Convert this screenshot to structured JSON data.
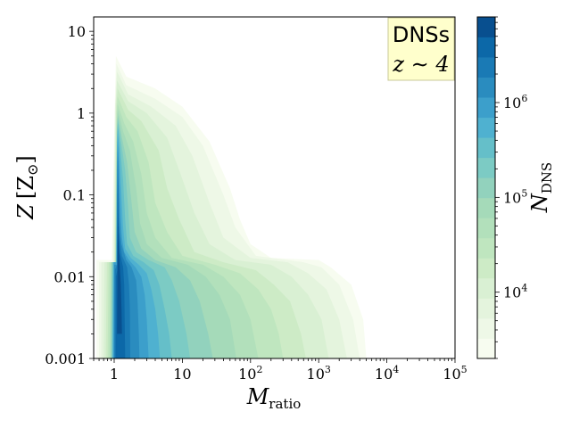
{
  "chart_data": {
    "type": "heatmap",
    "subtype": "filled-contour",
    "xscale": "log",
    "yscale": "log",
    "xlim": [
      0.5,
      100000
    ],
    "ylim": [
      0.001,
      15
    ],
    "xlabel": {
      "main": "M",
      "sub": "ratio"
    },
    "ylabel": {
      "main": "Z",
      "unit": "[Z",
      "unit_sub": "⊙",
      "unit_close": "]"
    },
    "x_ticks": [
      {
        "value": 1,
        "label": "1"
      },
      {
        "value": 10,
        "label": "10"
      },
      {
        "value": 100,
        "base": "10",
        "exp": "2"
      },
      {
        "value": 1000,
        "base": "10",
        "exp": "3"
      },
      {
        "value": 10000,
        "base": "10",
        "exp": "4"
      },
      {
        "value": 100000,
        "base": "10",
        "exp": "5"
      }
    ],
    "y_ticks": [
      {
        "value": 0.001,
        "label": "0.001"
      },
      {
        "value": 0.01,
        "label": "0.01"
      },
      {
        "value": 0.1,
        "label": "0.1"
      },
      {
        "value": 1,
        "label": "1"
      },
      {
        "value": 10,
        "label": "10"
      }
    ],
    "annotation": {
      "line1": "DNSs",
      "line2": "z ∼ 4",
      "position": "top-right",
      "background": "#ffffcc"
    },
    "colorbar": {
      "label": {
        "main": "N",
        "sub": "DNS"
      },
      "scale": "log",
      "range": [
        2000,
        8000000
      ],
      "ticks": [
        {
          "value": 10000,
          "base": "10",
          "exp": "4"
        },
        {
          "value": 100000,
          "base": "10",
          "exp": "5"
        },
        {
          "value": 1000000,
          "base": "10",
          "exp": "6"
        }
      ],
      "colors": [
        "#f7fcf0",
        "#eef8e7",
        "#e4f4dd",
        "#d9f0d3",
        "#cdebc6",
        "#bfe6bf",
        "#b2e0bb",
        "#a5dab9",
        "#92d2bd",
        "#7ccbc4",
        "#65bfc9",
        "#4fb1d0",
        "#3c9fcb",
        "#2a8cbf",
        "#1a7ab5",
        "#0c68a8",
        "#084f8f"
      ]
    },
    "contours": [
      {
        "level": 0,
        "poly": [
          [
            0.55,
            0.001
          ],
          [
            0.55,
            0.016
          ],
          [
            0.92,
            0.016
          ],
          [
            1.0,
            0.6
          ],
          [
            1.06,
            5.0
          ],
          [
            1.5,
            2.8
          ],
          [
            4,
            2.0
          ],
          [
            10,
            1.2
          ],
          [
            25,
            0.45
          ],
          [
            50,
            0.12
          ],
          [
            70,
            0.05
          ],
          [
            100,
            0.025
          ],
          [
            200,
            0.017
          ],
          [
            1000,
            0.016
          ],
          [
            1500,
            0.013
          ],
          [
            3000,
            0.008
          ],
          [
            4500,
            0.003
          ],
          [
            5000,
            0.001
          ]
        ]
      },
      {
        "level": 1,
        "poly": [
          [
            0.6,
            0.001
          ],
          [
            0.6,
            0.015
          ],
          [
            0.95,
            0.015
          ],
          [
            1.02,
            1.0
          ],
          [
            1.08,
            4.0
          ],
          [
            1.5,
            2.2
          ],
          [
            4,
            1.5
          ],
          [
            10,
            0.9
          ],
          [
            20,
            0.4
          ],
          [
            40,
            0.1
          ],
          [
            60,
            0.04
          ],
          [
            120,
            0.018
          ],
          [
            600,
            0.015
          ],
          [
            1100,
            0.013
          ],
          [
            2000,
            0.008
          ],
          [
            3200,
            0.003
          ],
          [
            4000,
            0.001
          ]
        ]
      },
      {
        "level": 2,
        "poly": [
          [
            0.65,
            0.001
          ],
          [
            0.65,
            0.015
          ],
          [
            0.98,
            0.015
          ],
          [
            1.04,
            1.2
          ],
          [
            1.1,
            3.2
          ],
          [
            1.6,
            1.7
          ],
          [
            3.5,
            1.2
          ],
          [
            8,
            0.7
          ],
          [
            14,
            0.3
          ],
          [
            25,
            0.08
          ],
          [
            40,
            0.03
          ],
          [
            100,
            0.017
          ],
          [
            350,
            0.015
          ],
          [
            700,
            0.011
          ],
          [
            1300,
            0.007
          ],
          [
            2000,
            0.003
          ],
          [
            2600,
            0.001
          ]
        ]
      },
      {
        "level": 3,
        "poly": [
          [
            0.7,
            0.001
          ],
          [
            0.72,
            0.015
          ],
          [
            1.0,
            0.015
          ],
          [
            1.05,
            1.3
          ],
          [
            1.1,
            2.5
          ],
          [
            1.6,
            1.4
          ],
          [
            3,
            1.0
          ],
          [
            6,
            0.5
          ],
          [
            9,
            0.2
          ],
          [
            15,
            0.06
          ],
          [
            25,
            0.025
          ],
          [
            60,
            0.016
          ],
          [
            200,
            0.014
          ],
          [
            400,
            0.01
          ],
          [
            700,
            0.006
          ],
          [
            1100,
            0.003
          ],
          [
            1400,
            0.001
          ]
        ]
      },
      {
        "level": 4,
        "poly": [
          [
            0.75,
            0.001
          ],
          [
            0.78,
            0.015
          ],
          [
            1.02,
            0.015
          ],
          [
            1.07,
            1.2
          ],
          [
            1.12,
            2.0
          ],
          [
            1.6,
            1.1
          ],
          [
            2.5,
            0.8
          ],
          [
            4.5,
            0.35
          ],
          [
            6,
            0.12
          ],
          [
            9,
            0.05
          ],
          [
            15,
            0.02
          ],
          [
            40,
            0.015
          ],
          [
            120,
            0.012
          ],
          [
            220,
            0.008
          ],
          [
            380,
            0.005
          ],
          [
            550,
            0.002
          ],
          [
            650,
            0.001
          ]
        ]
      },
      {
        "level": 5,
        "poly": [
          [
            0.8,
            0.001
          ],
          [
            0.83,
            0.015
          ],
          [
            1.03,
            0.015
          ],
          [
            1.08,
            1.0
          ],
          [
            1.12,
            1.6
          ],
          [
            1.5,
            0.9
          ],
          [
            2.2,
            0.6
          ],
          [
            3.2,
            0.25
          ],
          [
            4,
            0.08
          ],
          [
            6,
            0.035
          ],
          [
            10,
            0.018
          ],
          [
            30,
            0.014
          ],
          [
            70,
            0.011
          ],
          [
            130,
            0.007
          ],
          [
            200,
            0.004
          ],
          [
            260,
            0.002
          ],
          [
            300,
            0.001
          ]
        ]
      },
      {
        "level": 6,
        "poly": [
          [
            0.85,
            0.001
          ],
          [
            0.88,
            0.015
          ],
          [
            1.04,
            0.015
          ],
          [
            1.09,
            0.9
          ],
          [
            1.12,
            1.3
          ],
          [
            1.4,
            0.75
          ],
          [
            1.9,
            0.45
          ],
          [
            2.5,
            0.18
          ],
          [
            3,
            0.06
          ],
          [
            4,
            0.03
          ],
          [
            7,
            0.017
          ],
          [
            20,
            0.014
          ],
          [
            40,
            0.01
          ],
          [
            70,
            0.006
          ],
          [
            100,
            0.003
          ],
          [
            130,
            0.001
          ]
        ]
      },
      {
        "level": 7,
        "poly": [
          [
            0.88,
            0.001
          ],
          [
            0.9,
            0.015
          ],
          [
            1.05,
            0.015
          ],
          [
            1.1,
            0.8
          ],
          [
            1.13,
            1.1
          ],
          [
            1.35,
            0.6
          ],
          [
            1.7,
            0.35
          ],
          [
            2.1,
            0.12
          ],
          [
            2.4,
            0.045
          ],
          [
            3,
            0.025
          ],
          [
            5,
            0.017
          ],
          [
            12,
            0.014
          ],
          [
            22,
            0.01
          ],
          [
            35,
            0.006
          ],
          [
            50,
            0.003
          ],
          [
            62,
            0.001
          ]
        ]
      },
      {
        "level": 8,
        "poly": [
          [
            0.9,
            0.001
          ],
          [
            0.92,
            0.015
          ],
          [
            1.06,
            0.015
          ],
          [
            1.1,
            0.7
          ],
          [
            1.13,
            0.95
          ],
          [
            1.3,
            0.5
          ],
          [
            1.55,
            0.25
          ],
          [
            1.8,
            0.08
          ],
          [
            2.0,
            0.035
          ],
          [
            2.5,
            0.022
          ],
          [
            4,
            0.016
          ],
          [
            8,
            0.013
          ],
          [
            13,
            0.009
          ],
          [
            18,
            0.005
          ],
          [
            24,
            0.002
          ],
          [
            28,
            0.001
          ]
        ]
      },
      {
        "level": 9,
        "poly": [
          [
            0.92,
            0.001
          ],
          [
            0.94,
            0.015
          ],
          [
            1.07,
            0.015
          ],
          [
            1.1,
            0.6
          ],
          [
            1.13,
            0.85
          ],
          [
            1.26,
            0.45
          ],
          [
            1.45,
            0.2
          ],
          [
            1.6,
            0.07
          ],
          [
            1.7,
            0.03
          ],
          [
            2.1,
            0.02
          ],
          [
            3.2,
            0.016
          ],
          [
            5.5,
            0.013
          ],
          [
            7,
            0.009
          ],
          [
            9,
            0.005
          ],
          [
            11.5,
            0.002
          ],
          [
            13,
            0.001
          ]
        ]
      },
      {
        "level": 10,
        "poly": [
          [
            0.94,
            0.001
          ],
          [
            0.96,
            0.015
          ],
          [
            1.07,
            0.015
          ],
          [
            1.1,
            0.5
          ],
          [
            1.13,
            0.75
          ],
          [
            1.22,
            0.4
          ],
          [
            1.35,
            0.15
          ],
          [
            1.45,
            0.05
          ],
          [
            1.55,
            0.025
          ],
          [
            1.9,
            0.018
          ],
          [
            2.7,
            0.015
          ],
          [
            3.8,
            0.012
          ],
          [
            4.6,
            0.008
          ],
          [
            5.5,
            0.004
          ],
          [
            6.4,
            0.002
          ],
          [
            7,
            0.001
          ]
        ]
      },
      {
        "level": 11,
        "poly": [
          [
            0.95,
            0.001
          ],
          [
            0.97,
            0.015
          ],
          [
            1.08,
            0.015
          ],
          [
            1.1,
            0.4
          ],
          [
            1.13,
            0.65
          ],
          [
            1.2,
            0.3
          ],
          [
            1.28,
            0.1
          ],
          [
            1.35,
            0.04
          ],
          [
            1.45,
            0.022
          ],
          [
            1.75,
            0.017
          ],
          [
            2.3,
            0.014
          ],
          [
            3.0,
            0.011
          ],
          [
            3.5,
            0.007
          ],
          [
            4.0,
            0.004
          ],
          [
            4.4,
            0.002
          ],
          [
            4.7,
            0.001
          ]
        ]
      },
      {
        "level": 12,
        "poly": [
          [
            0.97,
            0.001
          ],
          [
            0.99,
            0.015
          ],
          [
            1.08,
            0.015
          ],
          [
            1.11,
            0.3
          ],
          [
            1.13,
            0.5
          ],
          [
            1.18,
            0.2
          ],
          [
            1.24,
            0.07
          ],
          [
            1.3,
            0.03
          ],
          [
            1.4,
            0.02
          ],
          [
            1.65,
            0.016
          ],
          [
            2.05,
            0.013
          ],
          [
            2.5,
            0.01
          ],
          [
            2.8,
            0.006
          ],
          [
            3.0,
            0.003
          ],
          [
            3.2,
            0.001
          ]
        ]
      },
      {
        "level": 13,
        "poly": [
          [
            0.99,
            0.001
          ],
          [
            1.0,
            0.014
          ],
          [
            1.09,
            0.014
          ],
          [
            1.11,
            0.25
          ],
          [
            1.13,
            0.4
          ],
          [
            1.16,
            0.15
          ],
          [
            1.2,
            0.05
          ],
          [
            1.28,
            0.025
          ],
          [
            1.5,
            0.016
          ],
          [
            1.8,
            0.013
          ],
          [
            2.1,
            0.009
          ],
          [
            2.2,
            0.005
          ],
          [
            2.3,
            0.002
          ],
          [
            2.35,
            0.001
          ]
        ]
      },
      {
        "level": 14,
        "poly": [
          [
            1.01,
            0.001
          ],
          [
            1.02,
            0.012
          ],
          [
            1.1,
            0.014
          ],
          [
            1.12,
            0.2
          ],
          [
            1.14,
            0.3
          ],
          [
            1.15,
            0.1
          ],
          [
            1.18,
            0.035
          ],
          [
            1.3,
            0.018
          ],
          [
            1.55,
            0.013
          ],
          [
            1.65,
            0.008
          ],
          [
            1.7,
            0.004
          ],
          [
            1.72,
            0.001
          ]
        ]
      },
      {
        "level": 15,
        "poly": [
          [
            1.05,
            0.001
          ],
          [
            1.06,
            0.01
          ],
          [
            1.11,
            0.012
          ],
          [
            1.12,
            0.1
          ],
          [
            1.14,
            0.16
          ],
          [
            1.15,
            0.05
          ],
          [
            1.2,
            0.02
          ],
          [
            1.35,
            0.013
          ],
          [
            1.4,
            0.008
          ],
          [
            1.42,
            0.004
          ],
          [
            1.45,
            0.001
          ]
        ]
      },
      {
        "level": 16,
        "poly": [
          [
            1.1,
            0.002
          ],
          [
            1.11,
            0.008
          ],
          [
            1.12,
            0.02
          ],
          [
            1.13,
            0.06
          ],
          [
            1.15,
            0.03
          ],
          [
            1.2,
            0.015
          ],
          [
            1.25,
            0.008
          ],
          [
            1.28,
            0.004
          ],
          [
            1.3,
            0.002
          ]
        ]
      }
    ]
  }
}
